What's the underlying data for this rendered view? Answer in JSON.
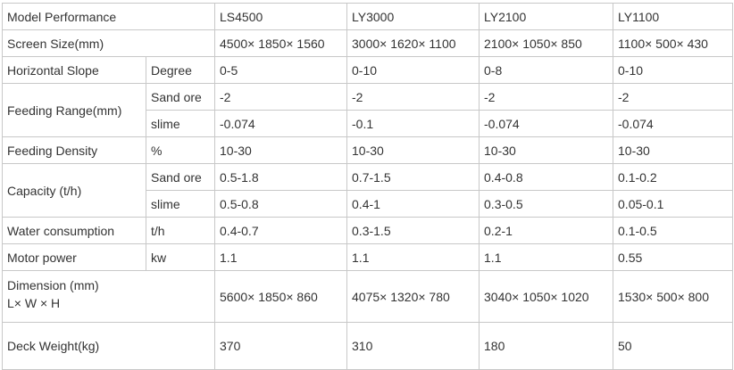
{
  "header": {
    "label": "Model Performance",
    "models": [
      "LS4500",
      "LY3000",
      "LY2100",
      "LY1100"
    ]
  },
  "rows": [
    {
      "label": "Screen Size(mm)",
      "values": [
        "4500× 1850× 1560",
        "3000× 1620× 1100",
        "2100× 1050× 850",
        "1100× 500× 430"
      ]
    },
    {
      "label": "Horizontal Slope",
      "unit": "Degree",
      "values": [
        "0-5",
        "0-10",
        "0-8",
        "0-10"
      ]
    },
    {
      "label": "Feeding Range(mm)",
      "subrows": [
        {
          "unit": "Sand  ore",
          "values": [
            -2,
            -2,
            -2,
            -2
          ]
        },
        {
          "unit": "slime",
          "values": [
            -0.074,
            -0.1,
            -0.074,
            -0.074
          ]
        }
      ]
    },
    {
      "label": "Feeding Density",
      "unit": "%",
      "values": [
        "10-30",
        "10-30",
        "10-30",
        "10-30"
      ]
    },
    {
      "label": "Capacity (t/h)",
      "subrows": [
        {
          "unit": "Sand ore",
          "values": [
            "0.5-1.8",
            "0.7-1.5",
            "0.4-0.8",
            "0.1-0.2"
          ]
        },
        {
          "unit": "slime",
          "values": [
            "0.5-0.8",
            "0.4-1",
            "0.3-0.5",
            "0.05-0.1"
          ]
        }
      ]
    },
    {
      "label": "Water consumption",
      "unit": "t/h",
      "values": [
        "0.4-0.7",
        "0.3-1.5",
        "0.2-1",
        "0.1-0.5"
      ]
    },
    {
      "label": "Motor power",
      "unit": "kw",
      "values": [
        1.1,
        1.1,
        1.1,
        0.55
      ]
    },
    {
      "label": [
        "Dimension (mm)",
        "L× W × H"
      ],
      "values": [
        "5600× 1850× 860",
        "4075× 1320× 780",
        "3040× 1050× 1020",
        "1530× 500× 800"
      ]
    },
    {
      "label": "Deck Weight(kg)",
      "values": [
        370,
        310,
        180,
        50
      ]
    }
  ]
}
